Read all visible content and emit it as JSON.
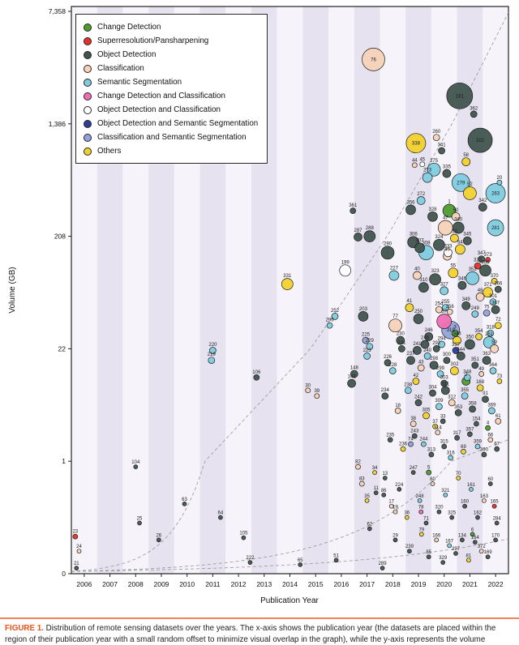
{
  "figure": {
    "caption_label": "FIGURE 1.",
    "caption_text": "Distribution of remote sensing datasets over the years. The x-axis shows the publication year (the datasets are placed within the region of their publication year with a small random offset to minimize visual overlap in the graph), while the y-axis represents the volume"
  },
  "chart_data": {
    "type": "scatter",
    "title": "",
    "xlabel": "Publication Year",
    "ylabel": "Volume (GB)",
    "x_ticks": [
      2006,
      2007,
      2008,
      2009,
      2010,
      2011,
      2012,
      2013,
      2014,
      2015,
      2016,
      2017,
      2018,
      2019,
      2020,
      2021,
      2022
    ],
    "x_domain": [
      2006,
      2023
    ],
    "y_ticks": [
      0,
      1,
      22,
      208,
      1386,
      7358
    ],
    "y_tick_labels": [
      "0",
      "1",
      "22",
      "208",
      "1,386",
      "7,358"
    ],
    "grid": "year-stripes",
    "stripe_colors": [
      "#f6f4fa",
      "#e7e2f0"
    ],
    "legend_position": "top-left",
    "legend": [
      {
        "label": "Change Detection",
        "color": "#4e9b30"
      },
      {
        "label": "Superresolution/Pansharpening",
        "color": "#e53228"
      },
      {
        "label": "Object Detection",
        "color": "#41544e"
      },
      {
        "label": "Classification",
        "color": "#f6d2b8"
      },
      {
        "label": "Semantic Segmentation",
        "color": "#7fccdf"
      },
      {
        "label": "Change Detection and Classification",
        "color": "#ef6fb3"
      },
      {
        "label": "Object Detection and Classification",
        "color": "#ffffff"
      },
      {
        "label": "Object Detection and Semantic Segmentation",
        "color": "#2e3d96"
      },
      {
        "label": "Classification and Semantic Segmentation",
        "color": "#93a3d9"
      },
      {
        "label": "Others",
        "color": "#f2d12e"
      }
    ],
    "trend_lines": [
      {
        "v0": 0.02,
        "k": 0.327
      },
      {
        "v0": 0.02,
        "k": 0.115
      },
      {
        "v0": 0.02,
        "k": 0.07
      }
    ],
    "points_format": [
      "year",
      "volume_gb",
      "radius_px",
      "category_index",
      "id_label"
    ],
    "points": [
      [
        2006.2,
        0.05,
        2.5,
        2,
        "21"
      ],
      [
        2006.15,
        0.33,
        3,
        1,
        "23"
      ],
      [
        2006.3,
        0.2,
        2.5,
        3,
        "24"
      ],
      [
        2008.5,
        0.95,
        2.5,
        2,
        "104"
      ],
      [
        2008.65,
        0.45,
        2.5,
        2,
        "25"
      ],
      [
        2009.4,
        0.3,
        2.5,
        2,
        "26"
      ],
      [
        2010.4,
        0.62,
        2.5,
        2,
        "63"
      ],
      [
        2011.5,
        21,
        4,
        4,
        "220"
      ],
      [
        2011.45,
        16,
        4,
        4,
        "219"
      ],
      [
        2011.8,
        0.5,
        2.5,
        2,
        "64"
      ],
      [
        2012.7,
        0.32,
        2.5,
        2,
        "105"
      ],
      [
        2013.2,
        10,
        3.5,
        2,
        "106"
      ],
      [
        2012.95,
        0.1,
        2.5,
        2,
        "222"
      ],
      [
        2014.4,
        80,
        7,
        9,
        "331"
      ],
      [
        2014.9,
        0.08,
        2.5,
        2,
        "65"
      ],
      [
        2015.2,
        7,
        3,
        3,
        "30"
      ],
      [
        2015.55,
        6,
        3,
        3,
        "39"
      ],
      [
        2016.3,
        0.12,
        2.5,
        2,
        "51"
      ],
      [
        2016.05,
        35,
        3.5,
        4,
        "296"
      ],
      [
        2016.25,
        42,
        4,
        4,
        "252"
      ],
      [
        2016.65,
        105,
        7,
        6,
        "199"
      ],
      [
        2017.0,
        11,
        4.5,
        2,
        "148"
      ],
      [
        2016.9,
        8.5,
        5,
        2,
        "142"
      ],
      [
        2016.95,
        320,
        3.5,
        2,
        "361"
      ],
      [
        2017.15,
        205,
        5,
        2,
        "287"
      ],
      [
        2017.6,
        208,
        7,
        2,
        "288"
      ],
      [
        2018.1,
        0.05,
        2.5,
        2,
        "289"
      ],
      [
        2017.6,
        0.4,
        2.5,
        2,
        "62"
      ],
      [
        2017.75,
        3600,
        14,
        3,
        "76"
      ],
      [
        2017.35,
        42,
        6,
        2,
        "203"
      ],
      [
        2017.6,
        23,
        4,
        4,
        "229"
      ],
      [
        2017.5,
        18,
        4,
        4,
        "223"
      ],
      [
        2017.45,
        26,
        4,
        8,
        "225"
      ],
      [
        2017.15,
        0.95,
        3,
        3,
        "82"
      ],
      [
        2017.3,
        0.8,
        3,
        3,
        "83"
      ],
      [
        2017.5,
        0.65,
        2.5,
        9,
        "35"
      ],
      [
        2017.85,
        0.72,
        2.5,
        2,
        "11"
      ],
      [
        2018.15,
        0.7,
        2.5,
        2,
        "86"
      ],
      [
        2018.6,
        0.55,
        2.5,
        3,
        "19"
      ],
      [
        2018.3,
        150,
        8,
        2,
        "290"
      ],
      [
        2018.55,
        95,
        6,
        4,
        "227"
      ],
      [
        2021.1,
        2100,
        16,
        2,
        "181"
      ],
      [
        2021.65,
        1600,
        4,
        2,
        "362"
      ],
      [
        2021.9,
        1050,
        15,
        2,
        "102"
      ],
      [
        2019.4,
        1000,
        12,
        9,
        "338"
      ],
      [
        2020.2,
        1100,
        4,
        3,
        "260"
      ],
      [
        2020.4,
        880,
        4,
        2,
        "341"
      ],
      [
        2019.35,
        690,
        3,
        3,
        "44"
      ],
      [
        2019.65,
        700,
        3,
        6,
        "45"
      ],
      [
        2020.1,
        640,
        8,
        4,
        "275"
      ],
      [
        2021.35,
        730,
        5,
        9,
        "58"
      ],
      [
        2021.15,
        515,
        11,
        4,
        "279"
      ],
      [
        2022.5,
        430,
        12,
        4,
        "263"
      ],
      [
        2022.65,
        515,
        3,
        4,
        "20"
      ],
      [
        2019.2,
        325,
        6,
        2,
        "356"
      ],
      [
        2020.7,
        320,
        8,
        0,
        "1"
      ],
      [
        2020.95,
        290,
        5,
        3,
        "50"
      ],
      [
        2020.55,
        240,
        9,
        3,
        "47"
      ],
      [
        2022.5,
        240,
        10,
        4,
        "281"
      ],
      [
        2022.2,
        130,
        3,
        1,
        "373"
      ],
      [
        2021.8,
        115,
        4,
        1,
        "322"
      ],
      [
        2021.95,
        132,
        4,
        2,
        "347"
      ],
      [
        2022.45,
        85,
        3.5,
        9,
        "370"
      ],
      [
        2022.2,
        68,
        6,
        9,
        "371"
      ],
      [
        2022.4,
        56,
        4,
        4,
        "301"
      ],
      [
        2019.85,
        560,
        6,
        4,
        "273"
      ],
      [
        2020.6,
        600,
        5,
        2,
        "335"
      ],
      [
        2021.5,
        430,
        8,
        9,
        "52"
      ],
      [
        2022.0,
        340,
        5,
        2,
        "342"
      ],
      [
        2020.05,
        290,
        6,
        2,
        "328"
      ],
      [
        2019.6,
        380,
        5,
        4,
        "272"
      ],
      [
        2021.05,
        240,
        7,
        2,
        "340"
      ],
      [
        2019.3,
        185,
        7,
        2,
        "306"
      ],
      [
        2019.55,
        165,
        6,
        2,
        "307"
      ],
      [
        2019.8,
        150,
        9,
        4,
        "308"
      ],
      [
        2020.3,
        175,
        7,
        2,
        "324"
      ],
      [
        2020.62,
        140,
        5,
        3,
        "46"
      ],
      [
        2021.12,
        160,
        6,
        9,
        "54"
      ],
      [
        2021.4,
        190,
        5,
        2,
        "345"
      ],
      [
        2020.9,
        200,
        5,
        9,
        "53"
      ],
      [
        2020.65,
        150,
        5,
        6,
        "333"
      ],
      [
        2019.45,
        95,
        5,
        3,
        "40"
      ],
      [
        2019.7,
        75,
        6,
        2,
        "310"
      ],
      [
        2020.15,
        88,
        7,
        2,
        "323"
      ],
      [
        2020.5,
        70,
        5,
        4,
        "327"
      ],
      [
        2020.85,
        100,
        6,
        9,
        "55"
      ],
      [
        2021.2,
        78,
        5,
        2,
        "346"
      ],
      [
        2021.6,
        90,
        8,
        4,
        "352"
      ],
      [
        2021.9,
        62,
        5,
        3,
        "48"
      ],
      [
        2022.1,
        105,
        7,
        2,
        "365"
      ],
      [
        2022.6,
        72,
        4,
        2,
        "366"
      ],
      [
        2020.5,
        38,
        9,
        5,
        "57"
      ],
      [
        2020.75,
        32,
        11,
        8,
        "319"
      ],
      [
        2020.3,
        48,
        4,
        3,
        "254"
      ],
      [
        2020.55,
        50,
        4,
        4,
        "255"
      ],
      [
        2020.72,
        46,
        3.5,
        3,
        "256"
      ],
      [
        2020.4,
        24,
        4,
        4,
        "294"
      ],
      [
        2020.2,
        22,
        4,
        2,
        "292"
      ],
      [
        2021.0,
        26,
        5,
        9,
        "343"
      ],
      [
        2021.7,
        44,
        4,
        4,
        "249"
      ],
      [
        2022.3,
        30,
        4,
        4,
        "318"
      ],
      [
        2022.25,
        25,
        7,
        4,
        "251"
      ],
      [
        2019.5,
        40,
        6,
        2,
        "250"
      ],
      [
        2019.9,
        28,
        5,
        2,
        "246"
      ],
      [
        2019.75,
        24,
        5,
        2,
        "245"
      ],
      [
        2019.45,
        21,
        5,
        2,
        "241"
      ],
      [
        2018.8,
        26,
        5,
        2,
        "230"
      ],
      [
        2018.85,
        22,
        4,
        2,
        "231"
      ],
      [
        2018.6,
        35,
        8,
        3,
        "77"
      ],
      [
        2019.15,
        50,
        5,
        9,
        "41"
      ],
      [
        2022.5,
        48,
        5,
        2,
        "367"
      ],
      [
        2022.6,
        35,
        4,
        9,
        "72"
      ],
      [
        2022.45,
        22,
        5,
        3,
        "59"
      ],
      [
        2021.35,
        52,
        5,
        2,
        "349"
      ],
      [
        2021.5,
        24,
        6,
        2,
        "350"
      ],
      [
        2021.85,
        28,
        4,
        9,
        "354"
      ],
      [
        2022.15,
        45,
        4,
        8,
        "75"
      ],
      [
        2018.3,
        15,
        4,
        2,
        "226"
      ],
      [
        2018.5,
        12,
        4,
        4,
        "228"
      ],
      [
        2019.2,
        16,
        5,
        2,
        "237"
      ],
      [
        2019.6,
        13,
        4,
        3,
        "43"
      ],
      [
        2019.85,
        18,
        4,
        4,
        "240"
      ],
      [
        2020.1,
        14,
        5,
        2,
        "298"
      ],
      [
        2020.35,
        11,
        4,
        4,
        "299"
      ],
      [
        2020.6,
        16,
        4,
        2,
        "300"
      ],
      [
        2020.9,
        12,
        5,
        9,
        "302"
      ],
      [
        2021.15,
        18,
        5,
        2,
        "344"
      ],
      [
        2021.4,
        10,
        4,
        4,
        "348"
      ],
      [
        2021.7,
        14,
        4,
        2,
        "351"
      ],
      [
        2021.95,
        11,
        3,
        3,
        "49"
      ],
      [
        2022.15,
        16,
        5,
        2,
        "363"
      ],
      [
        2022.4,
        12,
        4,
        4,
        "364"
      ],
      [
        2022.65,
        9,
        3,
        9,
        "73"
      ],
      [
        2020.95,
        21,
        4,
        7,
        "337"
      ],
      [
        2020.5,
        8.5,
        4,
        2,
        "303"
      ],
      [
        2019.4,
        9,
        4,
        9,
        "42"
      ],
      [
        2021.35,
        9,
        5,
        0,
        "2"
      ],
      [
        2020.92,
        30,
        4,
        0,
        "3"
      ],
      [
        2018.2,
        6,
        4,
        2,
        "234"
      ],
      [
        2018.7,
        4,
        3.5,
        3,
        "18"
      ],
      [
        2019.1,
        7,
        4,
        4,
        "238"
      ],
      [
        2019.5,
        5,
        4,
        2,
        "242"
      ],
      [
        2019.8,
        3.5,
        4,
        9,
        "305"
      ],
      [
        2020.05,
        6.5,
        4,
        2,
        "304"
      ],
      [
        2020.3,
        4.5,
        4,
        4,
        "309"
      ],
      [
        2020.55,
        7,
        5,
        2,
        "311"
      ],
      [
        2020.8,
        5,
        4,
        3,
        "312"
      ],
      [
        2021.05,
        3.8,
        4,
        2,
        "353"
      ],
      [
        2021.3,
        6,
        4,
        4,
        "355"
      ],
      [
        2021.6,
        4.2,
        4,
        2,
        "358"
      ],
      [
        2021.9,
        7.5,
        4,
        9,
        "168"
      ],
      [
        2022.1,
        5.5,
        4,
        2,
        "91"
      ],
      [
        2022.35,
        4,
        4,
        4,
        "369"
      ],
      [
        2022.6,
        3,
        3.5,
        3,
        "61"
      ],
      [
        2021.75,
        2.8,
        3,
        2,
        "154"
      ],
      [
        2020.15,
        2.6,
        3,
        9,
        "37"
      ],
      [
        2020.45,
        3,
        3,
        2,
        "33"
      ],
      [
        2019.3,
        2.8,
        3.5,
        3,
        "38"
      ],
      [
        2022.2,
        2.5,
        3,
        0,
        "4"
      ],
      [
        2018.4,
        1.8,
        3,
        2,
        "235"
      ],
      [
        2018.9,
        1.4,
        3,
        9,
        "236"
      ],
      [
        2019.35,
        2,
        3,
        2,
        "243"
      ],
      [
        2019.7,
        1.6,
        3,
        4,
        "244"
      ],
      [
        2020.0,
        1.2,
        3,
        2,
        "313"
      ],
      [
        2020.25,
        2.2,
        3,
        3,
        "314"
      ],
      [
        2020.5,
        1.5,
        3,
        2,
        "315"
      ],
      [
        2020.75,
        1.1,
        3,
        4,
        "316"
      ],
      [
        2021.0,
        1.9,
        3,
        2,
        "317"
      ],
      [
        2021.25,
        1.3,
        3,
        9,
        "69"
      ],
      [
        2021.5,
        2.1,
        3,
        2,
        "357"
      ],
      [
        2021.8,
        1.5,
        3,
        4,
        "359"
      ],
      [
        2022.05,
        1.2,
        3,
        2,
        "360"
      ],
      [
        2022.3,
        1.8,
        3,
        3,
        "66"
      ],
      [
        2022.55,
        1.4,
        3,
        2,
        "67"
      ],
      [
        2019.2,
        1.6,
        3,
        8,
        "74"
      ],
      [
        2017.8,
        0.9,
        2.5,
        9,
        "34"
      ],
      [
        2018.2,
        0.85,
        2.5,
        2,
        "13"
      ],
      [
        2018.45,
        0.6,
        2.5,
        3,
        "17"
      ],
      [
        2018.75,
        0.75,
        2.5,
        2,
        "224"
      ],
      [
        2019.05,
        0.5,
        2.5,
        9,
        "36"
      ],
      [
        2019.3,
        0.9,
        2.5,
        2,
        "247"
      ],
      [
        2019.55,
        0.65,
        2.5,
        4,
        "248"
      ],
      [
        2019.8,
        0.45,
        2.5,
        2,
        "71"
      ],
      [
        2020.05,
        0.8,
        2.5,
        3,
        "80"
      ],
      [
        2020.3,
        0.55,
        2.5,
        2,
        "320"
      ],
      [
        2020.55,
        0.7,
        2.5,
        4,
        "321"
      ],
      [
        2020.8,
        0.5,
        2.5,
        2,
        "325"
      ],
      [
        2021.05,
        0.85,
        2.5,
        9,
        "70"
      ],
      [
        2021.3,
        0.6,
        2.5,
        2,
        "160"
      ],
      [
        2021.55,
        0.75,
        2.5,
        4,
        "161"
      ],
      [
        2021.8,
        0.5,
        2.5,
        2,
        "162"
      ],
      [
        2022.05,
        0.65,
        2.5,
        3,
        "163"
      ],
      [
        2022.3,
        0.8,
        2.5,
        2,
        "60"
      ],
      [
        2022.55,
        0.45,
        2.5,
        2,
        "284"
      ],
      [
        2022.45,
        0.6,
        2.5,
        1,
        "165"
      ],
      [
        2019.9,
        0.9,
        3,
        0,
        "5"
      ],
      [
        2021.6,
        0.35,
        2.5,
        0,
        "6"
      ],
      [
        2019.6,
        0.55,
        2.5,
        5,
        "78"
      ],
      [
        2018.6,
        0.3,
        2.5,
        2,
        "29"
      ],
      [
        2019.15,
        0.2,
        2.5,
        2,
        "239"
      ],
      [
        2019.62,
        0.35,
        2.5,
        9,
        "79"
      ],
      [
        2019.9,
        0.15,
        2.5,
        2,
        "85"
      ],
      [
        2020.2,
        0.3,
        2.5,
        3,
        "166"
      ],
      [
        2020.45,
        0.1,
        2.5,
        2,
        "329"
      ],
      [
        2020.7,
        0.25,
        2.5,
        4,
        "167"
      ],
      [
        2020.95,
        0.18,
        2.5,
        2,
        "297"
      ],
      [
        2021.2,
        0.3,
        2.5,
        2,
        "134"
      ],
      [
        2021.45,
        0.12,
        2.5,
        9,
        "81"
      ],
      [
        2021.7,
        0.28,
        2.5,
        2,
        "164"
      ],
      [
        2021.95,
        0.2,
        2.5,
        3,
        "372"
      ],
      [
        2022.2,
        0.15,
        2.5,
        2,
        "169"
      ],
      [
        2022.5,
        0.3,
        2.5,
        2,
        "170"
      ]
    ]
  }
}
